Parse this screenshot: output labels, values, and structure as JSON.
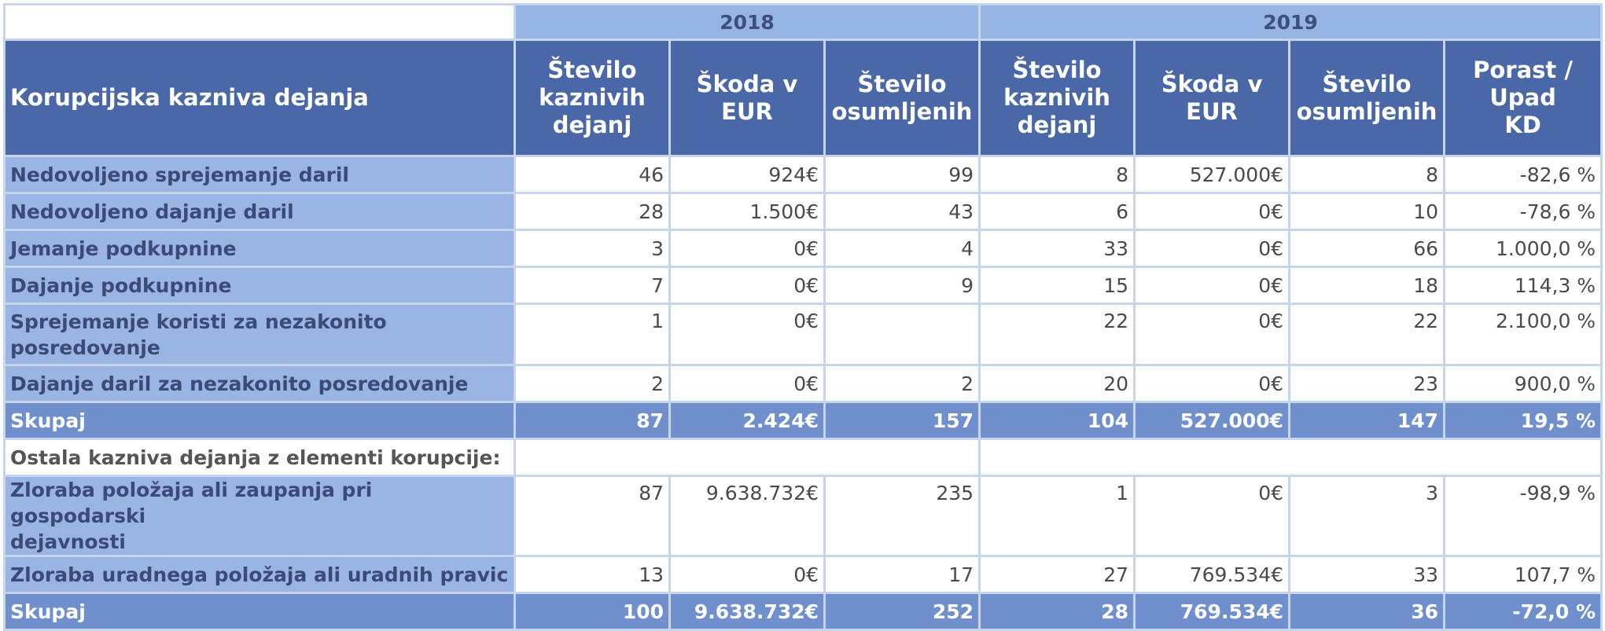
{
  "years": [
    "2018",
    "2019"
  ],
  "column_headers": {
    "label": "Korupcijska kazniva dejanja",
    "columns": [
      [
        "Število",
        "kaznivih",
        "dejanj"
      ],
      [
        "Škoda v",
        "EUR"
      ],
      [
        "Število",
        "osumljenih"
      ],
      [
        "Število",
        "kaznivih",
        "dejanj"
      ],
      [
        "Škoda v",
        "EUR"
      ],
      [
        "Število",
        "osumljenih"
      ],
      [
        "Porast /",
        "Upad",
        "KD"
      ]
    ]
  },
  "group1": {
    "rows": [
      {
        "label": "Nedovoljeno sprejemanje daril",
        "cells": [
          "46",
          "924€",
          "99",
          "8",
          "527.000€",
          "8",
          "-82,6 %"
        ]
      },
      {
        "label": "Nedovoljeno dajanje daril",
        "cells": [
          "28",
          "1.500€",
          "43",
          "6",
          "0€",
          "10",
          "-78,6 %"
        ]
      },
      {
        "label": "Jemanje podkupnine",
        "cells": [
          "3",
          "0€",
          "4",
          "33",
          "0€",
          "66",
          "1.000,0 %"
        ]
      },
      {
        "label": "Dajanje podkupnine",
        "cells": [
          "7",
          "0€",
          "9",
          "15",
          "0€",
          "18",
          "114,3 %"
        ]
      },
      {
        "label_lines": [
          "Sprejemanje koristi za nezakonito",
          "posredovanje"
        ],
        "cells": [
          "1",
          "0€",
          "",
          "22",
          "0€",
          "22",
          "2.100,0 %"
        ]
      },
      {
        "label": "Dajanje daril za nezakonito posredovanje",
        "cells": [
          "2",
          "0€",
          "2",
          "20",
          "0€",
          "23",
          "900,0 %"
        ]
      }
    ],
    "total": {
      "label": "Skupaj",
      "cells": [
        "87",
        "2.424€",
        "157",
        "104",
        "527.000€",
        "147",
        "19,5 %"
      ]
    }
  },
  "section_label": "Ostala kazniva dejanja z elementi korupcije:",
  "group2": {
    "rows": [
      {
        "label_lines": [
          "Zloraba položaja ali zaupanja pri gospodarski",
          "dejavnosti"
        ],
        "cells": [
          "87",
          "9.638.732€",
          "235",
          "1",
          "0€",
          "3",
          "-98,9 %"
        ]
      },
      {
        "label": "Zloraba uradnega položaja ali uradnih pravic",
        "cells": [
          "13",
          "0€",
          "17",
          "27",
          "769.534€",
          "33",
          "107,7 %"
        ]
      }
    ],
    "total": {
      "label": "Skupaj",
      "cells": [
        "100",
        "9.638.732€",
        "252",
        "28",
        "769.534€",
        "36",
        "-72,0 %"
      ]
    }
  }
}
